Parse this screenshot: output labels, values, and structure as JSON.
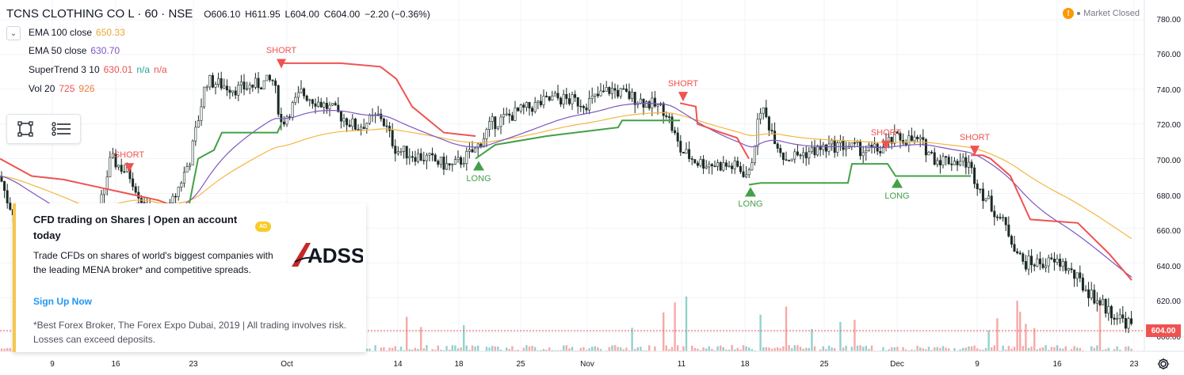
{
  "header": {
    "symbol": "TCNS CLOTHING CO L · 60 · NSE",
    "open": "O606.10",
    "high": "H611.95",
    "low": "L604.00",
    "close": "C604.00",
    "change": "−2.20 (−0.36%)"
  },
  "indicators": [
    {
      "label": "EMA 100 close",
      "value": "650.33",
      "color": "#e8a735"
    },
    {
      "label": "EMA 50 close",
      "value": "630.70",
      "color": "#7e57c2"
    },
    {
      "label": "SuperTrend 3 10",
      "value": "630.01",
      "value2": "n/a",
      "value3": "n/a",
      "color": "#ef5350",
      "color2": "#26a69a"
    },
    {
      "label": "Vol 20",
      "value": "725",
      "value2": "926",
      "color": "#ef5350",
      "color2": "#ef7c3a"
    }
  ],
  "market_status": {
    "icon": "warning-icon",
    "label": "Market Closed"
  },
  "toolbar": [
    {
      "icon": "rectangle-select-icon"
    },
    {
      "icon": "object-tree-icon"
    }
  ],
  "ad": {
    "title": "CFD trading on Shares | Open an account today",
    "badge": "AD",
    "body": "Trade CFDs on shares of world's biggest companies with the leading MENA broker* and competitive spreads.",
    "cta": "Sign Up Now",
    "disclaimer": "*Best Forex Broker, The Forex Expo Dubai, 2019 | All trading involves risk. Losses can exceed deposits.",
    "logo_text": "ADSS"
  },
  "price_axis": {
    "labels": [
      "780.00",
      "760.00",
      "740.00",
      "720.00",
      "700.00",
      "680.00",
      "660.00",
      "640.00",
      "620.00",
      "600.00"
    ],
    "last_price": "604.00"
  },
  "time_axis": {
    "labels": [
      "9",
      "16",
      "23",
      "Oct",
      "14",
      "18",
      "25",
      "Nov",
      "11",
      "18",
      "25",
      "Dec",
      "9",
      "16",
      "23"
    ]
  },
  "signals": [
    {
      "label": "SHORT",
      "type": "short"
    },
    {
      "label": "SHORT",
      "type": "short"
    },
    {
      "label": "LONG",
      "type": "long"
    },
    {
      "label": "SHORT",
      "type": "short"
    },
    {
      "label": "LONG",
      "type": "long"
    },
    {
      "label": "SHORT",
      "type": "short"
    },
    {
      "label": "LONG",
      "type": "long"
    },
    {
      "label": "SHORT",
      "type": "short"
    }
  ],
  "colors": {
    "up": "#26a69a",
    "down": "#ef5350",
    "candle_up_body": "#ffffff",
    "candle_down_body": "#1b2a24",
    "supertrend_down": "#ef5350",
    "supertrend_up": "#43a047",
    "ema50": "#7e57c2",
    "ema100": "#f5b642"
  },
  "chart_data": {
    "type": "line",
    "title": "TCNS CLOTHING CO L · 60 · NSE",
    "ylim": [
      595,
      785
    ],
    "candles_close_anchor": [
      {
        "x": "Sep 2",
        "y": 690
      },
      {
        "x": "Sep 9",
        "y": 660
      },
      {
        "x": "Sep 16",
        "y": 705
      },
      {
        "x": "Sep 23",
        "y": 745
      },
      {
        "x": "Oct 1",
        "y": 730
      },
      {
        "x": "Oct 14",
        "y": 715
      },
      {
        "x": "Oct 18",
        "y": 695
      },
      {
        "x": "Oct 25",
        "y": 730
      },
      {
        "x": "Nov 1",
        "y": 740
      },
      {
        "x": "Nov 11",
        "y": 700
      },
      {
        "x": "Nov 18",
        "y": 725
      },
      {
        "x": "Nov 25",
        "y": 700
      },
      {
        "x": "Dec 2",
        "y": 710
      },
      {
        "x": "Dec 9",
        "y": 690
      },
      {
        "x": "Dec 16",
        "y": 640
      },
      {
        "x": "Dec 23",
        "y": 604
      }
    ],
    "series": [
      {
        "name": "EMA 100 close",
        "last": 650.33
      },
      {
        "name": "EMA 50 close",
        "last": 630.7
      },
      {
        "name": "SuperTrend 3 10",
        "last": 630.01
      }
    ]
  }
}
